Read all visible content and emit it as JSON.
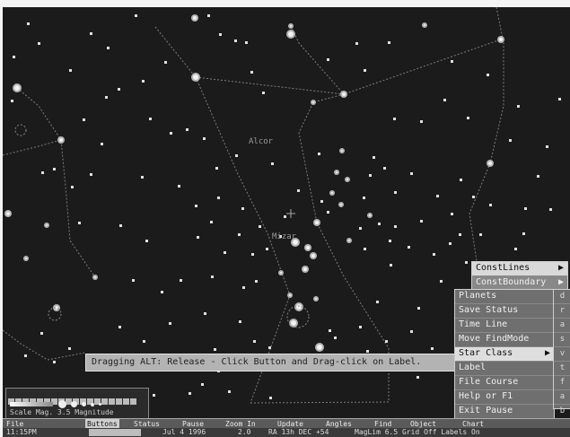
{
  "context_menu": {
    "top_items": [
      {
        "label": "ConstLines",
        "arrow": "▶",
        "active": true
      },
      {
        "label": "ConstBoundary",
        "arrow": "▶",
        "active": false
      }
    ],
    "items": [
      {
        "label": "Planets",
        "arrow": "",
        "active": false
      },
      {
        "label": "Save Status",
        "arrow": "",
        "active": false
      },
      {
        "label": "Time Line",
        "arrow": "",
        "active": false
      },
      {
        "label": "Move FindMode",
        "arrow": "",
        "active": false
      },
      {
        "label": "Star Class",
        "arrow": "▶",
        "active": true
      },
      {
        "label": "Label",
        "arrow": "",
        "active": false
      },
      {
        "label": "File Course",
        "arrow": "",
        "active": false
      },
      {
        "label": "Help or F1",
        "arrow": "",
        "active": false
      },
      {
        "label": "Exit Pause",
        "arrow": "",
        "active": false
      }
    ],
    "edge_labels": [
      "d",
      "r",
      "a",
      "s",
      "v",
      "t",
      "f",
      "a",
      "b"
    ]
  },
  "status_message": "Dragging ALT: Release - Click Button and Drag-click on Label.",
  "star_labels": [
    "Alcor",
    "Mizar"
  ],
  "magnitude_legend": {
    "label": "Scale Mag. 3.5 Magnitude"
  },
  "menubar": {
    "items": [
      {
        "label": "File",
        "active": false
      },
      {
        "label": "Buttons",
        "active": false
      },
      {
        "label": "Status",
        "active": false
      },
      {
        "label": "Pause",
        "active": false
      },
      {
        "label": "Zoom In",
        "active": false
      },
      {
        "label": "Update",
        "active": false
      },
      {
        "label": "Angles",
        "active": false
      },
      {
        "label": "Find",
        "active": false
      },
      {
        "label": "Object",
        "active": false
      },
      {
        "label": "Chart",
        "active": false
      }
    ]
  },
  "statusbar": {
    "time": "11:15PM",
    "date": "Jul 4 1996",
    "zoom": "2.0",
    "location": "RA 13h DEC +54",
    "extra": "MagLim 6.5  Grid Off  Labels On"
  },
  "colors": {
    "sky": "#1b1b1b",
    "star": "#e6e6e6",
    "line": "#8c8c8c",
    "menu": "#6f6f6f",
    "menu_highlight": "#dedede"
  }
}
